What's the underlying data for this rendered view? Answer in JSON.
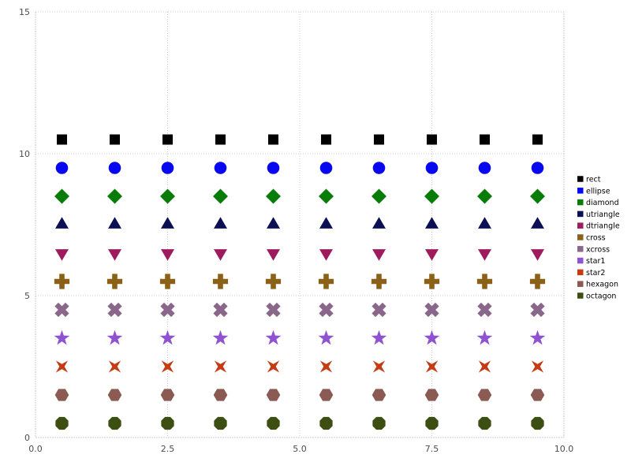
{
  "chart_data": {
    "type": "scatter",
    "title": "",
    "xlabel": "",
    "ylabel": "",
    "xlim": [
      0,
      10
    ],
    "ylim": [
      0,
      15
    ],
    "grid": true,
    "grid_style": "dotted",
    "legend_position": "right",
    "x_ticks": [
      0,
      2.5,
      5,
      7.5,
      10
    ],
    "x_tick_labels": [
      "0.0",
      "2.5",
      "5.0",
      "7.5",
      "10.0"
    ],
    "y_ticks": [
      0,
      5,
      10,
      15
    ],
    "y_tick_labels": [
      "0",
      "5",
      "10",
      "15"
    ],
    "x": [
      0.5,
      1.5,
      2.5,
      3.5,
      4.5,
      5.5,
      6.5,
      7.5,
      8.5,
      9.5
    ],
    "series": [
      {
        "name": "rect",
        "shape": "rect",
        "color": "#000000",
        "y": 10.5
      },
      {
        "name": "ellipse",
        "shape": "ellipse",
        "color": "#0707f0",
        "y": 9.5
      },
      {
        "name": "diamond",
        "shape": "diamond",
        "color": "#077d07",
        "y": 8.5
      },
      {
        "name": "utriangle",
        "shape": "utriangle",
        "color": "#0b1054",
        "y": 7.5
      },
      {
        "name": "dtriangle",
        "shape": "dtriangle",
        "color": "#9e1b5e",
        "y": 6.5
      },
      {
        "name": "cross",
        "shape": "cross",
        "color": "#8a6116",
        "y": 5.5
      },
      {
        "name": "xcross",
        "shape": "xcross",
        "color": "#8b668b",
        "y": 4.5
      },
      {
        "name": "star1",
        "shape": "star1",
        "color": "#8f52d1",
        "y": 3.5
      },
      {
        "name": "star2",
        "shape": "star2",
        "color": "#c53c14",
        "y": 2.5
      },
      {
        "name": "hexagon",
        "shape": "hexagon",
        "color": "#8b5a52",
        "y": 1.5
      },
      {
        "name": "octagon",
        "shape": "octagon",
        "color": "#3c4e12",
        "y": 0.5
      }
    ],
    "colors": {
      "grid": "#cccccc",
      "tick_label": "#4d4d4d",
      "legend_text": "#000000",
      "background": "#ffffff"
    }
  }
}
